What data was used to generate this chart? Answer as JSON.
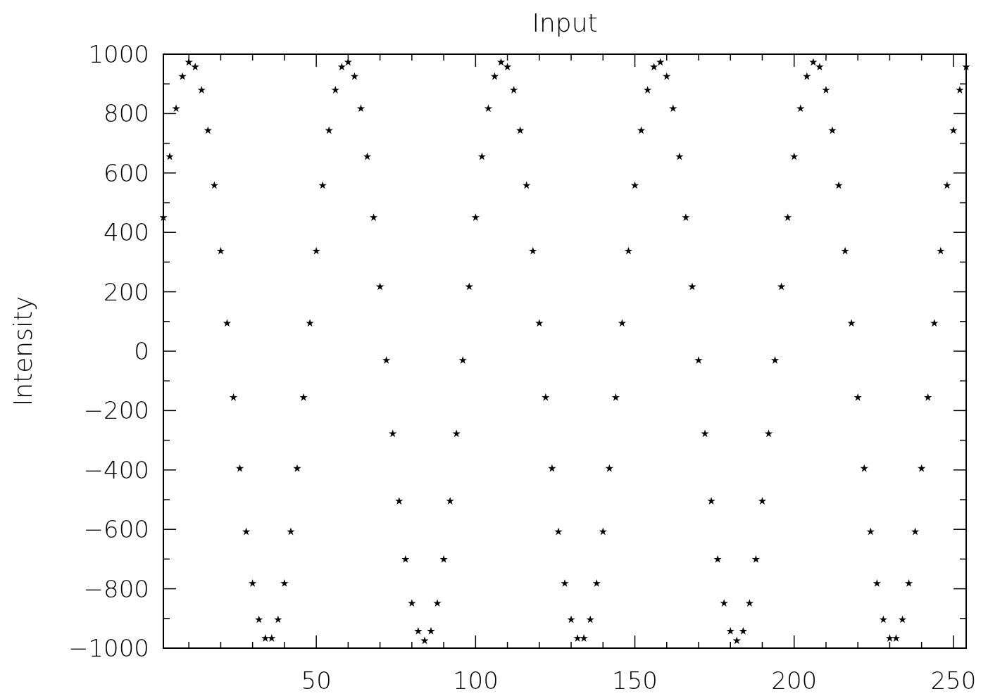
{
  "chart_data": {
    "type": "scatter",
    "title": "Input",
    "ylabel": "Intensity",
    "marker": "star",
    "grid": false,
    "xlim": [
      2,
      254
    ],
    "ylim": [
      -1000,
      1000
    ],
    "xticks": [
      {
        "value": 10,
        "label": null
      },
      {
        "value": 20,
        "label": null
      },
      {
        "value": 30,
        "label": null
      },
      {
        "value": 40,
        "label": null
      },
      50,
      {
        "value": 60,
        "label": null
      },
      {
        "value": 70,
        "label": null
      },
      {
        "value": 80,
        "label": null
      },
      {
        "value": 90,
        "label": null
      },
      100,
      {
        "value": 110,
        "label": null
      },
      {
        "value": 120,
        "label": null
      },
      {
        "value": 130,
        "label": null
      },
      {
        "value": 140,
        "label": null
      },
      150,
      {
        "value": 160,
        "label": null
      },
      {
        "value": 170,
        "label": null
      },
      {
        "value": 180,
        "label": null
      },
      {
        "value": 190,
        "label": null
      },
      200,
      {
        "value": 210,
        "label": null
      },
      {
        "value": 220,
        "label": null
      },
      {
        "value": 230,
        "label": null
      },
      {
        "value": 240,
        "label": null
      },
      250
    ],
    "yticks": [
      -1000,
      {
        "value": -900,
        "label": null
      },
      -800,
      {
        "value": -700,
        "label": null
      },
      -600,
      {
        "value": -500,
        "label": null
      },
      -400,
      {
        "value": -300,
        "label": null
      },
      -200,
      {
        "value": -100,
        "label": null
      },
      0,
      {
        "value": 100,
        "label": null
      },
      200,
      {
        "value": 300,
        "label": null
      },
      400,
      {
        "value": 500,
        "label": null
      },
      600,
      {
        "value": 700,
        "label": null
      },
      800,
      {
        "value": 900,
        "label": null
      },
      1000
    ],
    "series": [
      {
        "color": "#000000",
        "x": [
          2,
          4,
          6,
          8,
          10,
          12,
          14,
          16,
          18,
          20,
          22,
          24,
          26,
          28,
          30,
          32,
          34,
          36,
          38,
          40,
          42,
          44,
          46,
          48,
          50,
          52,
          54,
          56,
          58,
          60,
          62,
          64,
          66,
          68,
          70,
          72,
          74,
          76,
          78,
          80,
          82,
          84,
          86,
          88,
          90,
          92,
          94,
          96,
          98,
          100,
          102,
          104,
          106,
          108,
          110,
          112,
          114,
          116,
          118,
          120,
          122,
          124,
          126,
          128,
          130,
          132,
          134,
          136,
          138,
          140,
          142,
          144,
          146,
          148,
          150,
          152,
          154,
          156,
          158,
          160,
          162,
          164,
          166,
          168,
          170,
          172,
          174,
          176,
          178,
          180,
          182,
          184,
          186,
          188,
          190,
          192,
          194,
          196,
          198,
          200,
          202,
          204,
          206,
          208,
          210,
          212,
          214,
          216,
          218,
          220,
          222,
          224,
          226,
          228,
          230,
          232,
          234,
          236,
          238,
          240,
          242,
          244,
          246,
          248,
          250,
          252,
          254
        ],
        "values": [
          450,
          655,
          817,
          925,
          973,
          957,
          879,
          743,
          558,
          337,
          94,
          -156,
          -395,
          -608,
          -782,
          -904,
          -967,
          -967,
          -904,
          -782,
          -608,
          -395,
          -156,
          94,
          337,
          558,
          743,
          879,
          957,
          973,
          925,
          817,
          655,
          450,
          217,
          -31,
          -278,
          -505,
          -701,
          -849,
          -943,
          -975,
          -943,
          -849,
          -701,
          -505,
          -278,
          -31,
          217,
          450,
          655,
          817,
          925,
          973,
          957,
          879,
          743,
          558,
          337,
          94,
          -156,
          -395,
          -608,
          -782,
          -904,
          -967,
          -967,
          -904,
          -782,
          -608,
          -395,
          -156,
          94,
          337,
          558,
          743,
          879,
          957,
          973,
          925,
          817,
          655,
          450,
          217,
          -31,
          -278,
          -505,
          -701,
          -849,
          -943,
          -975,
          -943,
          -849,
          -701,
          -505,
          -278,
          -31,
          217,
          450,
          655,
          817,
          925,
          973,
          957,
          879,
          743,
          558,
          337,
          94,
          -156,
          -395,
          -608,
          -782,
          -904,
          -967,
          -967,
          -904,
          -782,
          -608,
          -395,
          -156,
          94,
          337,
          558,
          743,
          879,
          957
        ]
      }
    ]
  }
}
